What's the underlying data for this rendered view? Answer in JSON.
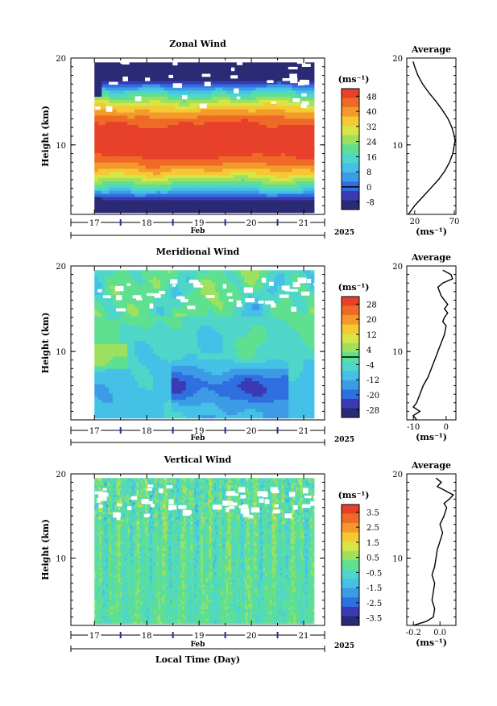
{
  "x_axis": {
    "day_ticks": [
      "17",
      "18",
      "19",
      "20",
      "21"
    ],
    "month_label": "Feb",
    "year_label": "2025",
    "xlabel": "Local Time (Day)"
  },
  "chart_data": [
    {
      "type": "heatmap",
      "title": "Zonal Wind",
      "ylabel": "Height (km)",
      "ylim": [
        2,
        20
      ],
      "y_ticks": [
        "20",
        "10"
      ],
      "xlim": [
        16.55,
        21.4
      ],
      "data_extent_x": [
        17.0,
        21.2
      ],
      "colorbar": {
        "unit_label": "(ms⁻¹)",
        "tick_labels": [
          "48",
          "40",
          "32",
          "24",
          "16",
          "8",
          "0",
          "-8"
        ],
        "tick_values": [
          48,
          40,
          32,
          24,
          16,
          8,
          0,
          -8
        ],
        "range": [
          -12,
          52
        ],
        "zero_line": true,
        "colors": [
          "#2a2a75",
          "#3a3ab5",
          "#2f6fe0",
          "#3d9be6",
          "#45c0e6",
          "#4fd6c8",
          "#5fe090",
          "#9ee060",
          "#d8e645",
          "#f5c834",
          "#f49a2b",
          "#ef6a26",
          "#e8412a"
        ]
      },
      "average": {
        "title": "Average",
        "xlabel": "(ms⁻¹)",
        "x_tick_labels": [
          "20",
          "70"
        ],
        "xlim": [
          10,
          72
        ],
        "ylim": [
          2,
          20
        ],
        "y_tick_labels": [
          "20",
          "10"
        ],
        "profile": {
          "height": [
            2.0,
            3.0,
            4.0,
            5.0,
            6.0,
            7.0,
            8.0,
            9.0,
            10.0,
            10.5,
            11.0,
            12.0,
            13.0,
            14.0,
            15.0,
            16.0,
            17.0,
            18.0,
            19.0,
            19.6
          ],
          "value": [
            12,
            20,
            30,
            40,
            50,
            58,
            64,
            68,
            70,
            71,
            70,
            67,
            62,
            55,
            47,
            38,
            30,
            24,
            20,
            18
          ]
        }
      }
    },
    {
      "type": "heatmap",
      "title": "Meridional Wind",
      "ylabel": "Height (km)",
      "ylim": [
        2,
        20
      ],
      "y_ticks": [
        "20",
        "10"
      ],
      "xlim": [
        16.55,
        21.4
      ],
      "data_extent_x": [
        17.0,
        21.2
      ],
      "colorbar": {
        "unit_label": "(ms⁻¹)",
        "tick_labels": [
          "28",
          "20",
          "12",
          "4",
          "-4",
          "-12",
          "-20",
          "-28"
        ],
        "tick_values": [
          28,
          20,
          12,
          4,
          -4,
          -12,
          -20,
          -28
        ],
        "range": [
          -32,
          32
        ],
        "zero_line": true,
        "colors": [
          "#2a2a75",
          "#3a3ab5",
          "#2f6fe0",
          "#3d9be6",
          "#45c0e6",
          "#4fd6c8",
          "#5fe090",
          "#9ee060",
          "#d8e645",
          "#f5c834",
          "#f49a2b",
          "#ef6a26",
          "#e8412a"
        ]
      },
      "average": {
        "title": "Average",
        "xlabel": "(ms⁻¹)",
        "x_tick_labels": [
          "-10",
          "0"
        ],
        "xlim": [
          -12,
          3
        ],
        "ylim": [
          2,
          20
        ],
        "y_tick_labels": [
          "20",
          "10"
        ],
        "profile": {
          "height": [
            2.0,
            2.5,
            3.0,
            3.5,
            4.0,
            5.0,
            6.0,
            7.0,
            8.0,
            9.0,
            10.0,
            11.0,
            12.0,
            13.0,
            13.5,
            14.0,
            14.5,
            15.0,
            15.5,
            16.0,
            16.5,
            17.0,
            17.5,
            18.0,
            18.5,
            19.0,
            19.5
          ],
          "value": [
            -9,
            -10,
            -8,
            -10,
            -9,
            -8,
            -7,
            -5.5,
            -4.5,
            -3.5,
            -2.5,
            -1.5,
            -0.5,
            0,
            -1,
            -0.5,
            0.5,
            -0.5,
            0.5,
            -0.5,
            -1.5,
            -2,
            -2.5,
            -1,
            2,
            1.5,
            -1
          ]
        }
      }
    },
    {
      "type": "heatmap",
      "title": "Vertical Wind",
      "ylabel": "Height (km)",
      "ylim": [
        2,
        20
      ],
      "y_ticks": [
        "20",
        "10"
      ],
      "xlim": [
        16.55,
        21.4
      ],
      "data_extent_x": [
        17.0,
        21.2
      ],
      "colorbar": {
        "unit_label": "(ms⁻¹)",
        "tick_labels": [
          "3.5",
          "2.5",
          "1.5",
          "0.5",
          "-0.5",
          "-1.5",
          "-2.5",
          "-3.5"
        ],
        "tick_values": [
          3.5,
          2.5,
          1.5,
          0.5,
          -0.5,
          -1.5,
          -2.5,
          -3.5
        ],
        "range": [
          -4,
          4
        ],
        "zero_line": false,
        "colors": [
          "#2a2a75",
          "#3a3ab5",
          "#2f6fe0",
          "#3d9be6",
          "#45c0e6",
          "#4fd6c8",
          "#5fe090",
          "#9ee060",
          "#d8e645",
          "#f5c834",
          "#f49a2b",
          "#ef6a26",
          "#e8412a"
        ]
      },
      "average": {
        "title": "Average",
        "xlabel": "(ms⁻¹)",
        "x_tick_labels": [
          "-0.2",
          "0.0"
        ],
        "xlim": [
          -0.25,
          0.12
        ],
        "ylim": [
          2,
          20
        ],
        "y_tick_labels": [
          "20",
          "10"
        ],
        "profile": {
          "height": [
            2.0,
            2.5,
            3.0,
            4.0,
            5.0,
            6.0,
            7.0,
            8.0,
            9.0,
            10.0,
            11.0,
            12.0,
            13.0,
            14.0,
            15.0,
            16.0,
            16.5,
            17.0,
            17.5,
            18.0,
            18.5,
            19.0,
            19.5
          ],
          "value": [
            -0.2,
            -0.1,
            -0.05,
            -0.04,
            -0.06,
            -0.05,
            -0.04,
            -0.06,
            -0.04,
            -0.03,
            -0.02,
            0.0,
            0.02,
            0.0,
            0.03,
            0.05,
            0.03,
            0.07,
            0.1,
            0.04,
            -0.02,
            0.01,
            -0.03
          ]
        }
      }
    }
  ]
}
